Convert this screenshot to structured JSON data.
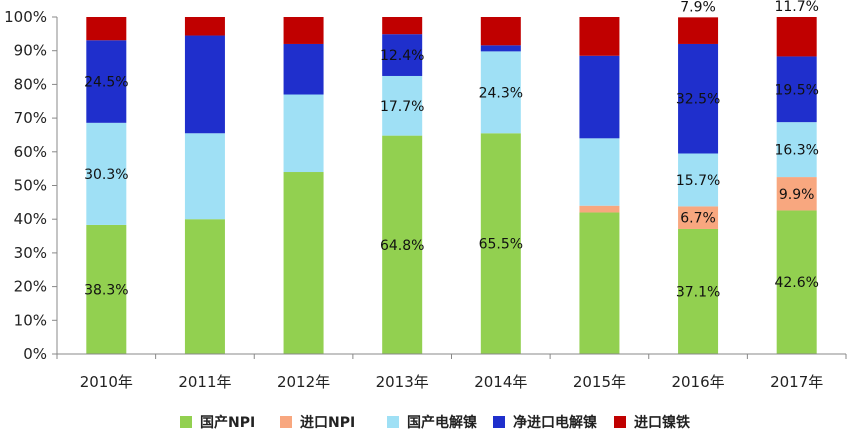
{
  "chart_data": {
    "type": "bar",
    "stacked": true,
    "categories": [
      "2010年",
      "2011年",
      "2012年",
      "2013年",
      "2014年",
      "2015年",
      "2016年",
      "2017年"
    ],
    "y_ticks": [
      "0%",
      "10%",
      "20%",
      "30%",
      "40%",
      "50%",
      "60%",
      "70%",
      "80%",
      "90%",
      "100%"
    ],
    "ylim": [
      0,
      100
    ],
    "grid": false,
    "legend_position": "bottom",
    "series": [
      {
        "name": "国产NPI",
        "color": "#92d050",
        "values": [
          38.3,
          40.0,
          54.0,
          64.8,
          65.5,
          42.0,
          37.1,
          42.6
        ]
      },
      {
        "name": "进口NPI",
        "color": "#f8a77f",
        "values": [
          0.0,
          0.0,
          0.0,
          0.0,
          0.0,
          2.0,
          6.7,
          9.9
        ]
      },
      {
        "name": "国产电解镍",
        "color": "#9fe0f5",
        "values": [
          30.3,
          25.5,
          23.0,
          17.7,
          24.3,
          20.0,
          15.7,
          16.3
        ]
      },
      {
        "name": "净进口电解镍",
        "color": "#1f2fcc",
        "values": [
          24.5,
          29.0,
          15.0,
          12.4,
          1.8,
          24.5,
          32.5,
          19.5
        ]
      },
      {
        "name": "进口镍铁",
        "color": "#c00000",
        "values": [
          6.9,
          5.5,
          8.0,
          5.1,
          8.4,
          11.5,
          7.9,
          11.7
        ]
      }
    ],
    "data_labels": [
      {
        "series": 0,
        "category": 0,
        "text": "38.3%"
      },
      {
        "series": 2,
        "category": 0,
        "text": "30.3%"
      },
      {
        "series": 3,
        "category": 0,
        "text": "24.5%"
      },
      {
        "series": 0,
        "category": 3,
        "text": "64.8%"
      },
      {
        "series": 2,
        "category": 3,
        "text": "17.7%"
      },
      {
        "series": 3,
        "category": 3,
        "text": "12.4%"
      },
      {
        "series": 0,
        "category": 4,
        "text": "65.5%"
      },
      {
        "series": 2,
        "category": 4,
        "text": "24.3%"
      },
      {
        "series": 0,
        "category": 6,
        "text": "37.1%"
      },
      {
        "series": 1,
        "category": 6,
        "text": "6.7%"
      },
      {
        "series": 2,
        "category": 6,
        "text": "15.7%"
      },
      {
        "series": 3,
        "category": 6,
        "text": "32.5%"
      },
      {
        "series": 4,
        "category": 6,
        "text": "7.9%",
        "above": true
      },
      {
        "series": 0,
        "category": 7,
        "text": "42.6%"
      },
      {
        "series": 1,
        "category": 7,
        "text": "9.9%"
      },
      {
        "series": 2,
        "category": 7,
        "text": "16.3%"
      },
      {
        "series": 3,
        "category": 7,
        "text": "19.5%"
      },
      {
        "series": 4,
        "category": 7,
        "text": "11.7%",
        "above": true
      }
    ]
  }
}
